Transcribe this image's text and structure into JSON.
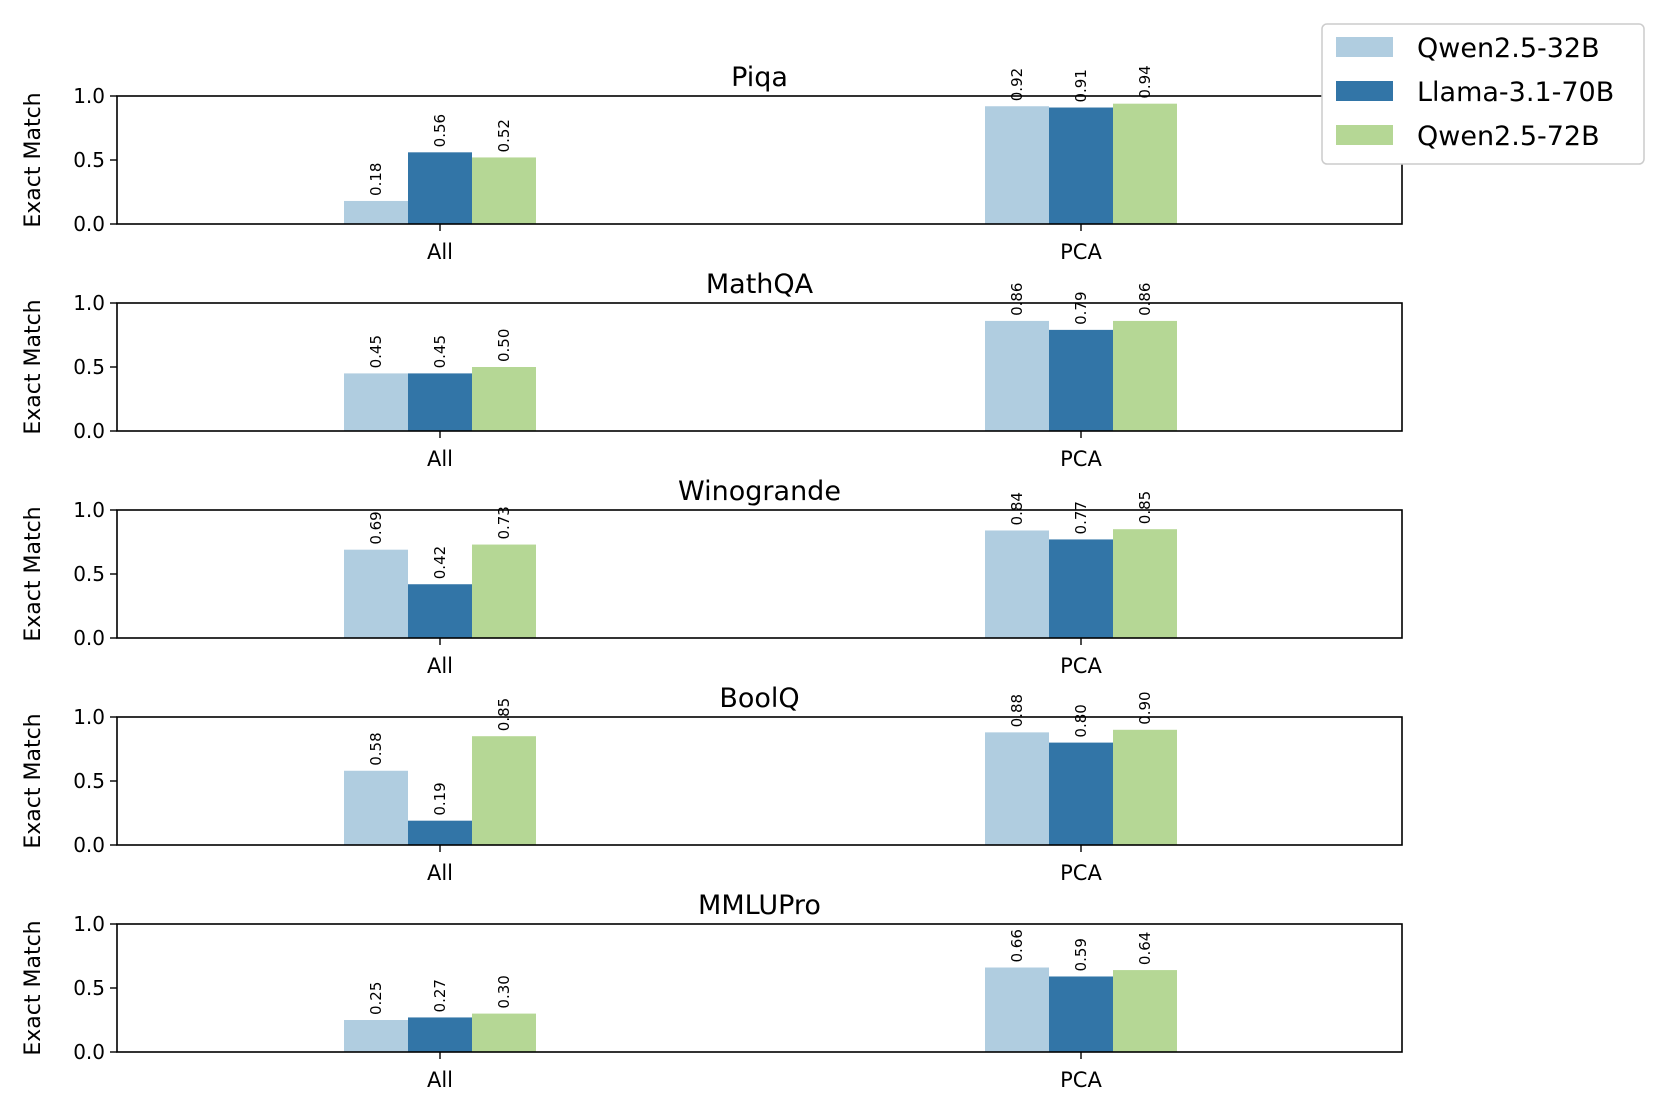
{
  "chart_data": [
    {
      "type": "bar",
      "title": "Piqa",
      "ylabel": "Exact Match",
      "xlabel": "",
      "categories": [
        "All",
        "PCA"
      ],
      "ylim": [
        0,
        1.0
      ],
      "yticks": [
        "0.0",
        "0.5",
        "1.0"
      ],
      "series": [
        {
          "name": "Qwen2.5-32B",
          "values": [
            0.18,
            0.92
          ],
          "labels": [
            "0.18",
            "0.92"
          ]
        },
        {
          "name": "Llama-3.1-70B",
          "values": [
            0.56,
            0.91
          ],
          "labels": [
            "0.56",
            "0.91"
          ]
        },
        {
          "name": "Qwen2.5-72B",
          "values": [
            0.52,
            0.94
          ],
          "labels": [
            "0.52",
            "0.94"
          ]
        }
      ]
    },
    {
      "type": "bar",
      "title": "MathQA",
      "ylabel": "Exact Match",
      "xlabel": "",
      "categories": [
        "All",
        "PCA"
      ],
      "ylim": [
        0,
        1.0
      ],
      "yticks": [
        "0.0",
        "0.5",
        "1.0"
      ],
      "series": [
        {
          "name": "Qwen2.5-32B",
          "values": [
            0.45,
            0.86
          ],
          "labels": [
            "0.45",
            "0.86"
          ]
        },
        {
          "name": "Llama-3.1-70B",
          "values": [
            0.45,
            0.79
          ],
          "labels": [
            "0.45",
            "0.79"
          ]
        },
        {
          "name": "Qwen2.5-72B",
          "values": [
            0.5,
            0.86
          ],
          "labels": [
            "0.50",
            "0.86"
          ]
        }
      ]
    },
    {
      "type": "bar",
      "title": "Winogrande",
      "ylabel": "Exact Match",
      "xlabel": "",
      "categories": [
        "All",
        "PCA"
      ],
      "ylim": [
        0,
        1.0
      ],
      "yticks": [
        "0.0",
        "0.5",
        "1.0"
      ],
      "series": [
        {
          "name": "Qwen2.5-32B",
          "values": [
            0.69,
            0.84
          ],
          "labels": [
            "0.69",
            "0.84"
          ]
        },
        {
          "name": "Llama-3.1-70B",
          "values": [
            0.42,
            0.77
          ],
          "labels": [
            "0.42",
            "0.77"
          ]
        },
        {
          "name": "Qwen2.5-72B",
          "values": [
            0.73,
            0.85
          ],
          "labels": [
            "0.73",
            "0.85"
          ]
        }
      ]
    },
    {
      "type": "bar",
      "title": "BoolQ",
      "ylabel": "Exact Match",
      "xlabel": "",
      "categories": [
        "All",
        "PCA"
      ],
      "ylim": [
        0,
        1.0
      ],
      "yticks": [
        "0.0",
        "0.5",
        "1.0"
      ],
      "series": [
        {
          "name": "Qwen2.5-32B",
          "values": [
            0.58,
            0.88
          ],
          "labels": [
            "0.58",
            "0.88"
          ]
        },
        {
          "name": "Llama-3.1-70B",
          "values": [
            0.19,
            0.8
          ],
          "labels": [
            "0.19",
            "0.80"
          ]
        },
        {
          "name": "Qwen2.5-72B",
          "values": [
            0.85,
            0.9
          ],
          "labels": [
            "0.85",
            "0.90"
          ]
        }
      ]
    },
    {
      "type": "bar",
      "title": "MMLUPro",
      "ylabel": "Exact Match",
      "xlabel": "",
      "categories": [
        "All",
        "PCA"
      ],
      "ylim": [
        0,
        1.0
      ],
      "yticks": [
        "0.0",
        "0.5",
        "1.0"
      ],
      "series": [
        {
          "name": "Qwen2.5-32B",
          "values": [
            0.25,
            0.66
          ],
          "labels": [
            "0.25",
            "0.66"
          ]
        },
        {
          "name": "Llama-3.1-70B",
          "values": [
            0.27,
            0.59
          ],
          "labels": [
            "0.27",
            "0.59"
          ]
        },
        {
          "name": "Qwen2.5-72B",
          "values": [
            0.3,
            0.64
          ],
          "labels": [
            "0.30",
            "0.64"
          ]
        }
      ]
    }
  ],
  "legend": {
    "placement": "top-right, outside plot area",
    "items": [
      {
        "label": "Qwen2.5-32B",
        "color": "#b0cde0"
      },
      {
        "label": "Llama-3.1-70B",
        "color": "#3275a7"
      },
      {
        "label": "Qwen2.5-72B",
        "color": "#b5d795"
      }
    ]
  },
  "colors": {
    "series": [
      "#b0cde0",
      "#3275a7",
      "#b5d795"
    ],
    "axis": "#000000",
    "legend_border": "#cccccc"
  }
}
